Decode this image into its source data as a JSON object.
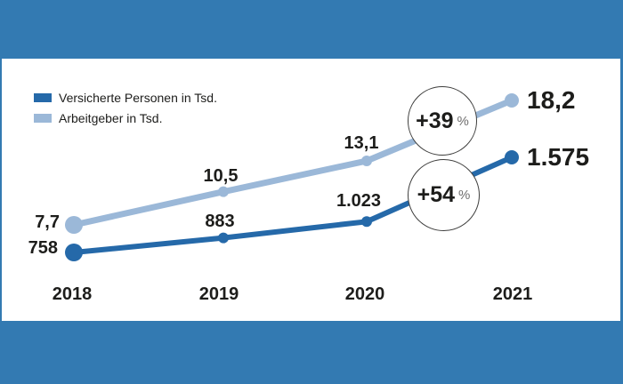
{
  "colors": {
    "background_band": "#337ab2",
    "panel": "#ffffff",
    "text": "#1d1d1b",
    "annotation_outline": "#3d3d3c",
    "annotation_percent_gray": "#706f6f",
    "series_versicherte": "#2569a9",
    "series_arbeitgeber": "#9bb8d8"
  },
  "legend": {
    "items": [
      {
        "label": "Versicherte Personen in Tsd."
      },
      {
        "label": "Arbeitgeber in Tsd."
      }
    ]
  },
  "chart_data": {
    "type": "line",
    "categories": [
      "2018",
      "2019",
      "2020",
      "2021"
    ],
    "series": [
      {
        "name": "Versicherte Personen in Tsd.",
        "color": "#2569a9",
        "values": [
          758,
          883,
          1023,
          1575
        ],
        "point_labels": [
          "758",
          "883",
          "1.023",
          "1.575"
        ]
      },
      {
        "name": "Arbeitgeber in Tsd.",
        "color": "#9bb8d8",
        "values": [
          7.7,
          10.5,
          13.1,
          18.2
        ],
        "point_labels": [
          "7,7",
          "10,5",
          "13,1",
          "18,2"
        ]
      }
    ],
    "annotations": [
      {
        "text": "+39",
        "unit": "%"
      },
      {
        "text": "+54",
        "unit": "%"
      }
    ],
    "legend_position": "top-left",
    "grid": false,
    "xlabel": "",
    "ylabel": ""
  }
}
